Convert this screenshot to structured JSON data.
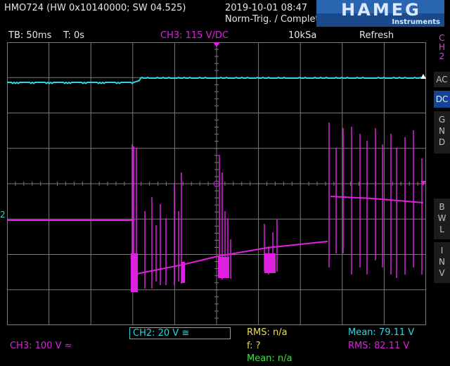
{
  "header": {
    "device": "HMO724 (HW 0x10140000; SW 04.525)",
    "datetime": "2019-10-01 08:47",
    "trigger_status": "Norm-Trig. / Complete",
    "logo_brand": "HAMEG",
    "logo_sub": "Instruments"
  },
  "status_bar": {
    "timebase": "TB: 50ms",
    "trigger_time": "T: 0s",
    "trigger_source": "CH3: 115 V",
    "trigger_coupling": "/DC",
    "sample_rate": "10kSa",
    "mode": "Refresh"
  },
  "side_panel": {
    "channel": [
      "C",
      "H",
      "2"
    ],
    "ac": "AC",
    "dc": "DC",
    "gnd": [
      "G",
      "N",
      "D"
    ],
    "bwl": [
      "B",
      "W",
      "L"
    ],
    "inv": [
      "I",
      "N",
      "V"
    ]
  },
  "footer": {
    "ch2_scale": "CH2: 20 V ≅",
    "ch3_scale": "CH3: 100 V ≈",
    "rms_center": "RMS: n/a",
    "freq_center": "f: ?",
    "mean_center": "Mean: n/a",
    "mean_right": "Mean: 79.11 V",
    "rms_right": "RMS: 82.11 V"
  },
  "markers": {
    "ch2_ground": "2"
  },
  "colors": {
    "ch2": "#2fd6e0",
    "ch3": "#e020e0",
    "grid": "#7a7a7a",
    "yellow": "#e8e040",
    "green": "#40e040",
    "accent_box": "#33c8d8"
  }
}
